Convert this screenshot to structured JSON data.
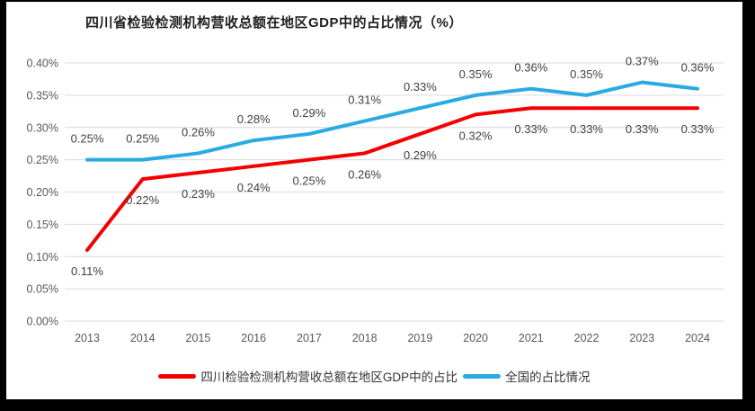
{
  "chart_data": {
    "type": "line",
    "title": "四川省检验检测机构营收总额在地区GDP中的占比情况（%）",
    "categories": [
      "2013",
      "2014",
      "2015",
      "2016",
      "2017",
      "2018",
      "2019",
      "2020",
      "2021",
      "2022",
      "2023",
      "2024"
    ],
    "series": [
      {
        "name": "四川检验检测机构营收总额在地区GDP中的占比",
        "color": "#f40000",
        "values": [
          0.11,
          0.22,
          0.23,
          0.24,
          0.25,
          0.26,
          0.29,
          0.32,
          0.33,
          0.33,
          0.33,
          0.33
        ],
        "labels": [
          "0.11%",
          "0.22%",
          "0.23%",
          "0.24%",
          "0.25%",
          "0.26%",
          "0.29%",
          "0.32%",
          "0.33%",
          "0.33%",
          "0.33%",
          "0.33%"
        ],
        "label_position": "below"
      },
      {
        "name": "全国的占比情况",
        "color": "#29abe2",
        "values": [
          0.25,
          0.25,
          0.26,
          0.28,
          0.29,
          0.31,
          0.33,
          0.35,
          0.36,
          0.35,
          0.37,
          0.36
        ],
        "labels": [
          "0.25%",
          "0.25%",
          "0.26%",
          "0.28%",
          "0.29%",
          "0.31%",
          "0.33%",
          "0.35%",
          "0.36%",
          "0.35%",
          "0.37%",
          "0.36%"
        ],
        "label_position": "above"
      }
    ],
    "y_ticks": [
      "0.00%",
      "0.05%",
      "0.10%",
      "0.15%",
      "0.20%",
      "0.25%",
      "0.30%",
      "0.35%",
      "0.40%"
    ],
    "ylim": [
      0,
      0.4
    ],
    "grid": "horizontal",
    "legend_position": "bottom",
    "gridline_color": "#d9d9d9",
    "axis_label_color": "#595959",
    "data_label_color": "#404040"
  }
}
